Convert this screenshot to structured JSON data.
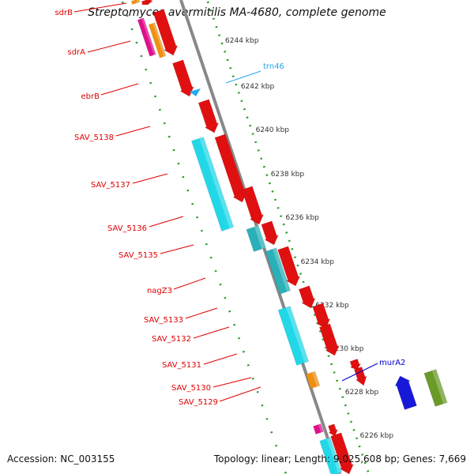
{
  "title": "Streptomyces avermitilis MA-4680, complete genome",
  "footer": {
    "accession": "Accession: NC_003155",
    "stats": "Topology: linear; Length: 9,025,608 bp; Genes: 7,669"
  },
  "colors": {
    "gene_label": "#e00000",
    "trna_label": "#22aaee",
    "blue_label": "#0000cc",
    "axis": "#888888",
    "ruler_dots": "#2a9a2a",
    "forward_arrow": "#e01010",
    "cyan_box": "#22d8e8",
    "dark_cyan_box": "#2ab0b8",
    "orange_box": "#f09010",
    "magenta_box": "#e0108a",
    "blue_arrow": "#1818d8",
    "olive_box": "#6a9a28",
    "trna_marker": "#22aaee"
  },
  "ruler": {
    "unit": "kbp",
    "ticks": [
      "6244 kbp",
      "6242 kbp",
      "6240 kbp",
      "6238 kbp",
      "6236 kbp",
      "6234 kbp",
      "6232 kbp",
      "6230 kbp",
      "6228 kbp",
      "6226 kbp"
    ]
  },
  "gene_labels": [
    {
      "label": "sdrB",
      "color": "red"
    },
    {
      "label": "sdrA",
      "color": "red"
    },
    {
      "label": "ebrB",
      "color": "red"
    },
    {
      "label": "SAV_5138",
      "color": "red"
    },
    {
      "label": "SAV_5137",
      "color": "red"
    },
    {
      "label": "SAV_5136",
      "color": "red"
    },
    {
      "label": "SAV_5135",
      "color": "red"
    },
    {
      "label": "nagZ3",
      "color": "red"
    },
    {
      "label": "SAV_5133",
      "color": "red"
    },
    {
      "label": "SAV_5132",
      "color": "red"
    },
    {
      "label": "SAV_5131",
      "color": "red"
    },
    {
      "label": "SAV_5130",
      "color": "red"
    },
    {
      "label": "SAV_5129",
      "color": "red"
    },
    {
      "label": "trn46",
      "color": "cyan"
    },
    {
      "label": "murA2",
      "color": "blue"
    }
  ]
}
